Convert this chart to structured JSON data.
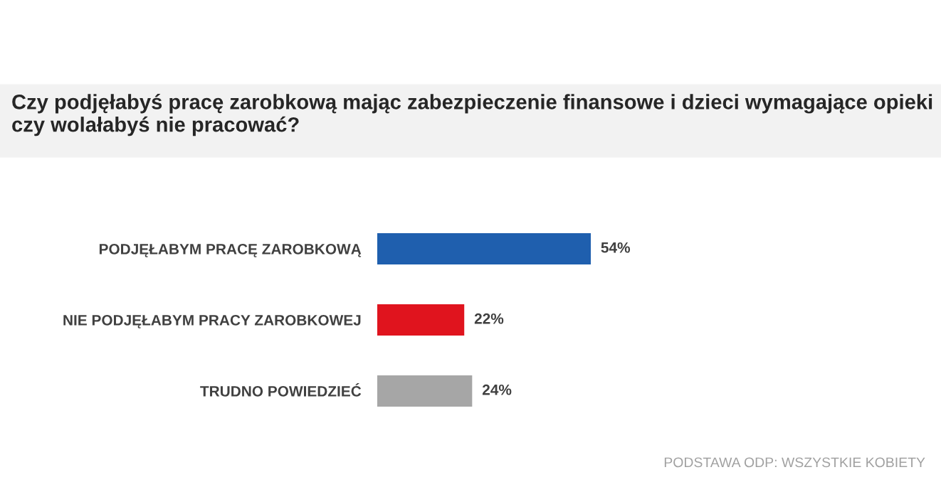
{
  "chart_data": {
    "type": "bar",
    "orientation": "horizontal",
    "title": "Czy podjęłabyś pracę zarobkową mając zabezpieczenie finansowe i dzieci wymagające opieki czy wolałabyś nie pracować?",
    "categories": [
      "PODJĘŁABYM PRACĘ ZAROBKOWĄ",
      "NIE PODJĘŁABYM PRACY ZAROBKOWEJ",
      "TRUDNO POWIEDZIEĆ"
    ],
    "values": [
      54,
      22,
      24
    ],
    "colors": [
      "#1f5fae",
      "#e0141e",
      "#a6a6a6"
    ],
    "value_labels": [
      "54%",
      "22%",
      "24%"
    ],
    "annotations": [
      "PODSTAWA ODP: WSZYSTKIE KOBIETY"
    ],
    "grid": false,
    "legend": false
  }
}
